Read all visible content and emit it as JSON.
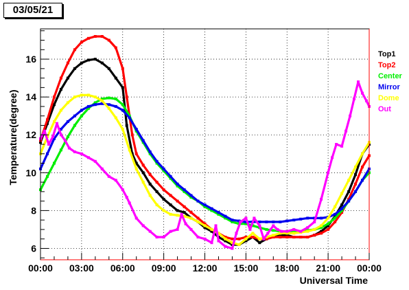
{
  "chart_data": {
    "type": "scatter",
    "date_label": "03/05/21",
    "xlabel": "Universal Time",
    "ylabel": "Temperature(degree)",
    "xlim": [
      0,
      24
    ],
    "ylim": [
      5.4,
      17.6
    ],
    "x_ticks": [
      {
        "value": 0,
        "label": "00:00"
      },
      {
        "value": 3,
        "label": "03:00"
      },
      {
        "value": 6,
        "label": "06:00"
      },
      {
        "value": 9,
        "label": "09:00"
      },
      {
        "value": 12,
        "label": "12:00"
      },
      {
        "value": 15,
        "label": "15:00"
      },
      {
        "value": 18,
        "label": "18:00"
      },
      {
        "value": 21,
        "label": "21:00"
      },
      {
        "value": 24,
        "label": "00:00"
      }
    ],
    "y_ticks": [
      {
        "value": 6,
        "label": "6"
      },
      {
        "value": 8,
        "label": "8"
      },
      {
        "value": 10,
        "label": "10"
      },
      {
        "value": 12,
        "label": "12"
      },
      {
        "value": 14,
        "label": "14"
      },
      {
        "value": 16,
        "label": "16"
      }
    ],
    "grid": true,
    "legend_position": "right",
    "series": [
      {
        "name": "Top1",
        "color": "#000000",
        "points": [
          [
            0,
            11.6
          ],
          [
            0.5,
            12.6
          ],
          [
            1,
            13.6
          ],
          [
            1.5,
            14.4
          ],
          [
            2,
            15.0
          ],
          [
            2.5,
            15.5
          ],
          [
            3,
            15.8
          ],
          [
            3.5,
            15.95
          ],
          [
            4,
            16.0
          ],
          [
            4.5,
            15.8
          ],
          [
            5,
            15.5
          ],
          [
            5.5,
            15.0
          ],
          [
            6,
            14.5
          ],
          [
            6.3,
            12.5
          ],
          [
            6.7,
            11.0
          ],
          [
            7,
            10.5
          ],
          [
            7.5,
            10.0
          ],
          [
            8,
            9.4
          ],
          [
            8.5,
            9.0
          ],
          [
            9,
            8.6
          ],
          [
            9.5,
            8.3
          ],
          [
            10,
            8.0
          ],
          [
            10.5,
            7.9
          ],
          [
            11,
            7.6
          ],
          [
            11.5,
            7.4
          ],
          [
            12,
            7.1
          ],
          [
            12.5,
            6.9
          ],
          [
            13,
            6.6
          ],
          [
            13.5,
            6.4
          ],
          [
            14,
            6.2
          ],
          [
            14.5,
            6.2
          ],
          [
            15,
            6.4
          ],
          [
            15.5,
            6.6
          ],
          [
            16,
            6.3
          ],
          [
            16.5,
            6.5
          ],
          [
            17,
            6.6
          ],
          [
            17.5,
            6.7
          ],
          [
            18,
            6.7
          ],
          [
            18.5,
            6.6
          ],
          [
            19,
            6.6
          ],
          [
            19.5,
            6.6
          ],
          [
            20,
            6.7
          ],
          [
            20.5,
            6.9
          ],
          [
            21,
            7.2
          ],
          [
            21.5,
            7.7
          ],
          [
            22,
            8.3
          ],
          [
            22.5,
            9.0
          ],
          [
            23,
            9.9
          ],
          [
            23.5,
            11.0
          ],
          [
            24,
            11.5
          ]
        ]
      },
      {
        "name": "Top2",
        "color": "#ff0000",
        "points": [
          [
            0,
            11.7
          ],
          [
            0.5,
            12.8
          ],
          [
            1,
            14.0
          ],
          [
            1.5,
            15.0
          ],
          [
            2,
            15.8
          ],
          [
            2.5,
            16.5
          ],
          [
            3,
            16.9
          ],
          [
            3.5,
            17.1
          ],
          [
            4,
            17.2
          ],
          [
            4.5,
            17.2
          ],
          [
            5,
            17.0
          ],
          [
            5.5,
            16.6
          ],
          [
            6,
            15.5
          ],
          [
            6.3,
            14.0
          ],
          [
            6.7,
            12.0
          ],
          [
            7,
            11.0
          ],
          [
            7.5,
            10.4
          ],
          [
            8,
            9.9
          ],
          [
            8.5,
            9.5
          ],
          [
            9,
            9.1
          ],
          [
            9.5,
            8.8
          ],
          [
            10,
            8.5
          ],
          [
            10.5,
            8.2
          ],
          [
            11,
            7.9
          ],
          [
            11.5,
            7.6
          ],
          [
            12,
            7.3
          ],
          [
            12.5,
            7.0
          ],
          [
            13,
            6.8
          ],
          [
            13.5,
            6.6
          ],
          [
            14,
            6.5
          ],
          [
            14.5,
            6.5
          ],
          [
            15,
            6.6
          ],
          [
            15.5,
            6.6
          ],
          [
            16,
            6.5
          ],
          [
            16.5,
            6.5
          ],
          [
            17,
            6.6
          ],
          [
            17.5,
            6.6
          ],
          [
            18,
            6.6
          ],
          [
            18.5,
            6.6
          ],
          [
            19,
            6.6
          ],
          [
            19.5,
            6.6
          ],
          [
            20,
            6.7
          ],
          [
            20.5,
            6.8
          ],
          [
            21,
            7.0
          ],
          [
            21.5,
            7.4
          ],
          [
            22,
            7.9
          ],
          [
            22.5,
            8.6
          ],
          [
            23,
            9.4
          ],
          [
            23.5,
            10.3
          ],
          [
            24,
            10.9
          ]
        ]
      },
      {
        "name": "Center",
        "color": "#00ee00",
        "points": [
          [
            0,
            9.1
          ],
          [
            0.5,
            9.8
          ],
          [
            1,
            10.5
          ],
          [
            1.5,
            11.2
          ],
          [
            2,
            11.9
          ],
          [
            2.5,
            12.5
          ],
          [
            3,
            13.0
          ],
          [
            3.5,
            13.4
          ],
          [
            4,
            13.7
          ],
          [
            4.5,
            13.9
          ],
          [
            5,
            13.95
          ],
          [
            5.5,
            13.9
          ],
          [
            6,
            13.6
          ],
          [
            6.5,
            13.0
          ],
          [
            7,
            12.2
          ],
          [
            7.5,
            11.6
          ],
          [
            8,
            11.0
          ],
          [
            8.5,
            10.5
          ],
          [
            9,
            10.1
          ],
          [
            9.5,
            9.7
          ],
          [
            10,
            9.3
          ],
          [
            10.5,
            9.0
          ],
          [
            11,
            8.7
          ],
          [
            11.5,
            8.5
          ],
          [
            12,
            8.2
          ],
          [
            12.5,
            8.0
          ],
          [
            13,
            7.8
          ],
          [
            13.5,
            7.6
          ],
          [
            14,
            7.4
          ],
          [
            14.5,
            7.3
          ],
          [
            15,
            7.3
          ],
          [
            15.5,
            7.2
          ],
          [
            16,
            7.1
          ],
          [
            16.5,
            7.0
          ],
          [
            17,
            6.95
          ],
          [
            17.5,
            6.9
          ],
          [
            18,
            6.9
          ],
          [
            18.5,
            6.9
          ],
          [
            19,
            6.9
          ],
          [
            19.5,
            6.95
          ],
          [
            20,
            7.0
          ],
          [
            20.5,
            7.1
          ],
          [
            21,
            7.3
          ],
          [
            21.5,
            7.6
          ],
          [
            22,
            8.0
          ],
          [
            22.5,
            8.5
          ],
          [
            23,
            9.0
          ],
          [
            23.5,
            9.6
          ],
          [
            24,
            10.0
          ]
        ]
      },
      {
        "name": "Mirror",
        "color": "#0000ee",
        "points": [
          [
            0,
            10.2
          ],
          [
            0.5,
            11.0
          ],
          [
            1,
            11.8
          ],
          [
            1.5,
            12.3
          ],
          [
            2,
            12.7
          ],
          [
            2.5,
            13.0
          ],
          [
            3,
            13.3
          ],
          [
            3.5,
            13.5
          ],
          [
            4,
            13.6
          ],
          [
            4.5,
            13.65
          ],
          [
            5,
            13.6
          ],
          [
            5.5,
            13.5
          ],
          [
            6,
            13.3
          ],
          [
            6.5,
            12.9
          ],
          [
            7,
            12.3
          ],
          [
            7.5,
            11.7
          ],
          [
            8,
            11.1
          ],
          [
            8.5,
            10.6
          ],
          [
            9,
            10.2
          ],
          [
            9.5,
            9.8
          ],
          [
            10,
            9.4
          ],
          [
            10.5,
            9.1
          ],
          [
            11,
            8.8
          ],
          [
            11.5,
            8.5
          ],
          [
            12,
            8.3
          ],
          [
            12.5,
            8.1
          ],
          [
            13,
            7.9
          ],
          [
            13.5,
            7.7
          ],
          [
            14,
            7.5
          ],
          [
            14.5,
            7.45
          ],
          [
            15,
            7.4
          ],
          [
            15.5,
            7.4
          ],
          [
            16,
            7.4
          ],
          [
            16.5,
            7.4
          ],
          [
            17,
            7.4
          ],
          [
            17.5,
            7.4
          ],
          [
            18,
            7.45
          ],
          [
            18.5,
            7.5
          ],
          [
            19,
            7.55
          ],
          [
            19.5,
            7.6
          ],
          [
            20,
            7.6
          ],
          [
            20.5,
            7.6
          ],
          [
            21,
            7.65
          ],
          [
            21.5,
            7.8
          ],
          [
            22,
            8.1
          ],
          [
            22.5,
            8.5
          ],
          [
            23,
            9.0
          ],
          [
            23.5,
            9.6
          ],
          [
            24,
            10.2
          ]
        ]
      },
      {
        "name": "Dome",
        "color": "#ffff00",
        "points": [
          [
            0,
            11.0
          ],
          [
            0.5,
            11.9
          ],
          [
            1,
            12.7
          ],
          [
            1.5,
            13.3
          ],
          [
            2,
            13.7
          ],
          [
            2.5,
            14.0
          ],
          [
            3,
            14.1
          ],
          [
            3.5,
            14.1
          ],
          [
            4,
            14.0
          ],
          [
            4.5,
            13.8
          ],
          [
            5,
            13.4
          ],
          [
            5.5,
            12.9
          ],
          [
            6,
            12.3
          ],
          [
            6.5,
            11.2
          ],
          [
            7,
            10.2
          ],
          [
            7.5,
            9.5
          ],
          [
            8,
            8.8
          ],
          [
            8.5,
            8.3
          ],
          [
            9,
            8.0
          ],
          [
            9.5,
            7.8
          ],
          [
            10,
            7.75
          ],
          [
            10.5,
            7.7
          ],
          [
            11,
            7.6
          ],
          [
            11.5,
            7.4
          ],
          [
            12,
            7.2
          ],
          [
            12.5,
            7.0
          ],
          [
            13,
            6.8
          ],
          [
            13.5,
            6.5
          ],
          [
            14,
            6.3
          ],
          [
            14.5,
            6.2
          ],
          [
            15,
            6.5
          ],
          [
            15.5,
            6.8
          ],
          [
            16,
            6.5
          ],
          [
            16.5,
            6.6
          ],
          [
            17,
            6.7
          ],
          [
            17.5,
            6.8
          ],
          [
            18,
            6.8
          ],
          [
            18.5,
            6.8
          ],
          [
            19,
            6.85
          ],
          [
            19.5,
            6.9
          ],
          [
            20,
            7.0
          ],
          [
            20.5,
            7.2
          ],
          [
            21,
            7.6
          ],
          [
            21.5,
            8.2
          ],
          [
            22,
            8.9
          ],
          [
            22.5,
            9.6
          ],
          [
            23,
            10.3
          ],
          [
            23.5,
            11.0
          ],
          [
            24,
            11.6
          ]
        ]
      },
      {
        "name": "Out",
        "color": "#ff00ff",
        "points": [
          [
            0,
            11.8
          ],
          [
            0.3,
            12.2
          ],
          [
            0.6,
            11.5
          ],
          [
            0.9,
            11.9
          ],
          [
            1.2,
            12.6
          ],
          [
            1.5,
            12.0
          ],
          [
            1.8,
            11.7
          ],
          [
            2.1,
            11.3
          ],
          [
            2.5,
            11.1
          ],
          [
            3,
            11.0
          ],
          [
            3.5,
            10.8
          ],
          [
            4,
            10.6
          ],
          [
            4.5,
            10.2
          ],
          [
            5,
            9.8
          ],
          [
            5.5,
            9.6
          ],
          [
            6,
            9.1
          ],
          [
            6.3,
            8.7
          ],
          [
            6.5,
            8.4
          ],
          [
            7,
            7.6
          ],
          [
            7.5,
            7.2
          ],
          [
            8,
            6.9
          ],
          [
            8.5,
            6.6
          ],
          [
            9,
            6.6
          ],
          [
            9.5,
            6.9
          ],
          [
            10,
            7.0
          ],
          [
            10.3,
            7.8
          ],
          [
            10.6,
            7.3
          ],
          [
            11,
            7.0
          ],
          [
            11.5,
            6.6
          ],
          [
            12,
            6.5
          ],
          [
            12.5,
            6.3
          ],
          [
            12.8,
            7.2
          ],
          [
            13,
            6.4
          ],
          [
            13.5,
            6.1
          ],
          [
            14,
            6.0
          ],
          [
            14.3,
            6.8
          ],
          [
            14.6,
            7.4
          ],
          [
            15,
            7.6
          ],
          [
            15.3,
            7.0
          ],
          [
            15.6,
            7.6
          ],
          [
            16,
            7.2
          ],
          [
            16.3,
            6.5
          ],
          [
            16.6,
            6.8
          ],
          [
            17,
            7.2
          ],
          [
            17.3,
            7.0
          ],
          [
            17.6,
            6.9
          ],
          [
            18,
            6.9
          ],
          [
            18.5,
            7.0
          ],
          [
            19,
            6.9
          ],
          [
            19.5,
            7.1
          ],
          [
            20,
            7.4
          ],
          [
            20.5,
            8.6
          ],
          [
            21,
            10.0
          ],
          [
            21.3,
            10.8
          ],
          [
            21.6,
            11.5
          ],
          [
            22,
            11.4
          ],
          [
            22.3,
            12.2
          ],
          [
            22.6,
            13.0
          ],
          [
            22.9,
            13.9
          ],
          [
            23.2,
            14.8
          ],
          [
            23.5,
            14.2
          ],
          [
            23.8,
            13.8
          ],
          [
            24,
            13.5
          ]
        ]
      }
    ]
  }
}
